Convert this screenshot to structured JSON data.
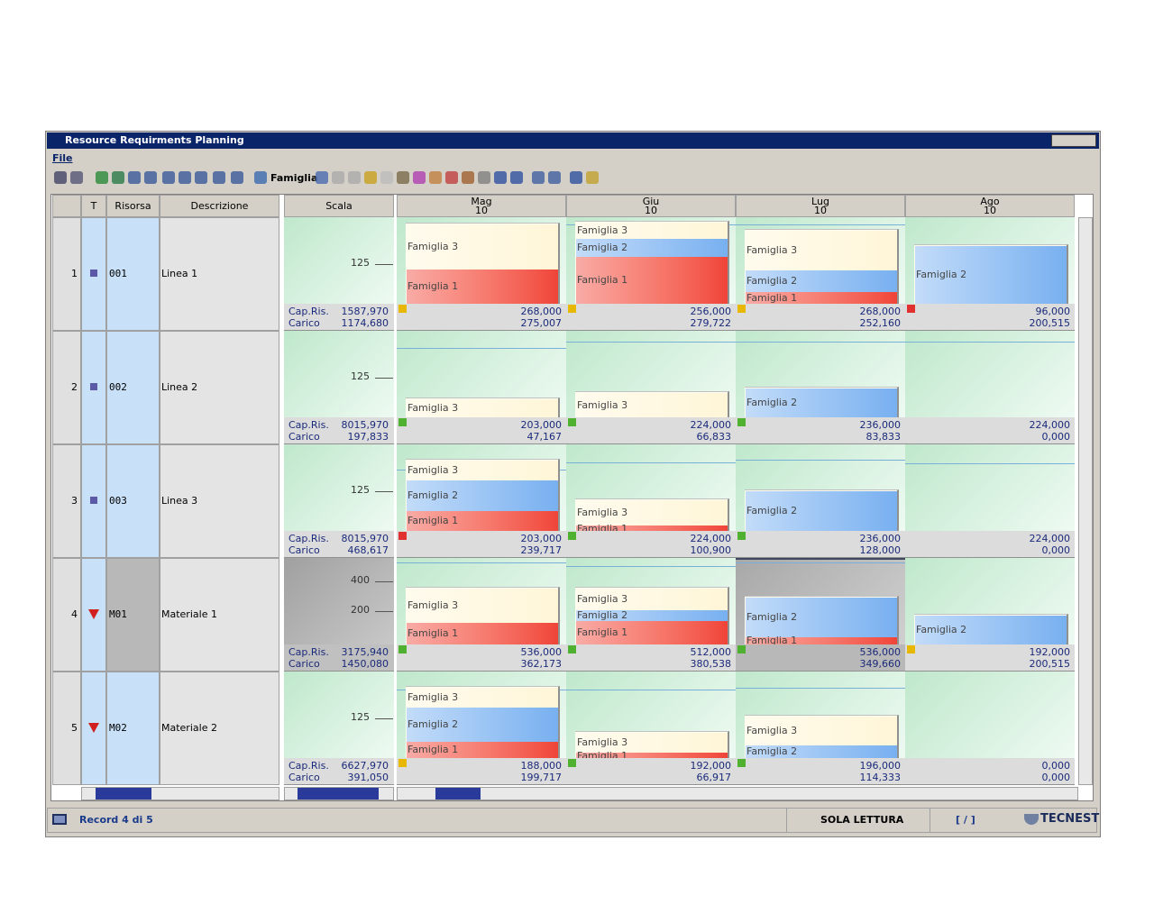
{
  "window": {
    "title": "Resource Requirments Planning",
    "menu": [
      "File"
    ],
    "toolbar_label": "Famiglia"
  },
  "headers": {
    "type": "T",
    "resource": "Risorsa",
    "description": "Descrizione",
    "scale": "Scala"
  },
  "months": [
    {
      "name": "Mag",
      "week": "10"
    },
    {
      "name": "Giu",
      "week": "10"
    },
    {
      "name": "Lug",
      "week": "10"
    },
    {
      "name": "Ago",
      "week": "10"
    }
  ],
  "cap_label": "Cap.Ris.",
  "load_label": "Carico",
  "rows": [
    {
      "number": "1",
      "icon": "square",
      "code": "001",
      "description": "Linea 1",
      "scale_ticks": [
        "125"
      ],
      "capacity": "1587,970",
      "load": "1174,680",
      "cells": [
        {
          "capacity": "268,000",
          "load": "275,007",
          "flag": "#e8b800",
          "segments": [
            {
              "label": "Famiglia 3",
              "color": "#fff6d8"
            },
            {
              "label": "Famiglia 1",
              "color": "#f04438"
            }
          ]
        },
        {
          "capacity": "256,000",
          "load": "279,722",
          "flag": "#e8b800",
          "segments": [
            {
              "label": "Famiglia 3",
              "color": "#fff6d8"
            },
            {
              "label": "Famiglia 2",
              "color": "#78b0f0"
            },
            {
              "label": "Famiglia 1",
              "color": "#f04438"
            }
          ]
        },
        {
          "capacity": "268,000",
          "load": "252,160",
          "flag": "#e8b800",
          "segments": [
            {
              "label": "Famiglia 3",
              "color": "#fff6d8"
            },
            {
              "label": "Famiglia 2",
              "color": "#78b0f0"
            },
            {
              "label": "Famiglia 1",
              "color": "#f04438"
            }
          ]
        },
        {
          "capacity": "96,000",
          "load": "200,515",
          "flag": "#e03030",
          "segments": [
            {
              "label": "Famiglia 2",
              "color": "#78b0f0"
            }
          ]
        }
      ]
    },
    {
      "number": "2",
      "icon": "square",
      "code": "002",
      "description": "Linea 2",
      "scale_ticks": [
        "125"
      ],
      "capacity": "8015,970",
      "load": "197,833",
      "cells": [
        {
          "capacity": "203,000",
          "load": "47,167",
          "flag": "#50b030",
          "segments": [
            {
              "label": "Famiglia 3",
              "color": "#fff6d8"
            }
          ]
        },
        {
          "capacity": "224,000",
          "load": "66,833",
          "flag": "#50b030",
          "segments": [
            {
              "label": "Famiglia 3",
              "color": "#fff6d8"
            }
          ]
        },
        {
          "capacity": "236,000",
          "load": "83,833",
          "flag": "#50b030",
          "segments": [
            {
              "label": "Famiglia 2",
              "color": "#78b0f0"
            }
          ]
        },
        {
          "capacity": "224,000",
          "load": "0,000"
        }
      ]
    },
    {
      "number": "3",
      "icon": "square",
      "code": "003",
      "description": "Linea 3",
      "scale_ticks": [
        "125"
      ],
      "capacity": "8015,970",
      "load": "468,617",
      "cells": [
        {
          "capacity": "203,000",
          "load": "239,717",
          "flag": "#e03030",
          "segments": [
            {
              "label": "Famiglia 3",
              "color": "#fff6d8"
            },
            {
              "label": "Famiglia 2",
              "color": "#78b0f0"
            },
            {
              "label": "Famiglia 1",
              "color": "#f04438"
            }
          ]
        },
        {
          "capacity": "224,000",
          "load": "100,900",
          "flag": "#50b030",
          "segments": [
            {
              "label": "Famiglia 3",
              "color": "#fff6d8"
            },
            {
              "label": "Famiglia 1",
              "color": "#f04438"
            }
          ]
        },
        {
          "capacity": "236,000",
          "load": "128,000",
          "flag": "#50b030",
          "segments": [
            {
              "label": "Famiglia 2",
              "color": "#78b0f0"
            }
          ]
        },
        {
          "capacity": "224,000",
          "load": "0,000"
        }
      ]
    },
    {
      "number": "4",
      "icon": "triangle",
      "code": "M01",
      "description": "Materiale 1",
      "selected": true,
      "scale_ticks": [
        "400",
        "200"
      ],
      "capacity": "3175,940",
      "load": "1450,080",
      "cells": [
        {
          "capacity": "536,000",
          "load": "362,173",
          "flag": "#50b030",
          "segments": [
            {
              "label": "Famiglia 3",
              "color": "#fff6d8"
            },
            {
              "label": "Famiglia 1",
              "color": "#f04438"
            }
          ]
        },
        {
          "capacity": "512,000",
          "load": "380,538",
          "flag": "#50b030",
          "segments": [
            {
              "label": "Famiglia 3",
              "color": "#fff6d8"
            },
            {
              "label": "Famiglia 2",
              "color": "#78b0f0"
            },
            {
              "label": "Famiglia 1",
              "color": "#f04438"
            }
          ]
        },
        {
          "capacity": "536,000",
          "load": "349,660",
          "flag": "#50b030",
          "selected": true,
          "segments": [
            {
              "label": "Famiglia 2",
              "color": "#78b0f0"
            },
            {
              "label": "Famiglia 1",
              "color": "#f04438"
            }
          ]
        },
        {
          "capacity": "192,000",
          "load": "200,515",
          "flag": "#e8b800",
          "segments": [
            {
              "label": "Famiglia 2",
              "color": "#78b0f0"
            }
          ]
        }
      ]
    },
    {
      "number": "5",
      "icon": "triangle",
      "code": "M02",
      "description": "Materiale 2",
      "scale_ticks": [
        "125"
      ],
      "capacity": "6627,970",
      "load": "391,050",
      "cells": [
        {
          "capacity": "188,000",
          "load": "199,717",
          "flag": "#e8b800",
          "segments": [
            {
              "label": "Famiglia 3",
              "color": "#fff6d8"
            },
            {
              "label": "Famiglia 2",
              "color": "#78b0f0"
            },
            {
              "label": "Famiglia 1",
              "color": "#f04438"
            }
          ]
        },
        {
          "capacity": "192,000",
          "load": "66,917",
          "flag": "#50b030",
          "segments": [
            {
              "label": "Famiglia 3",
              "color": "#fff6d8"
            },
            {
              "label": "Famiglia 1",
              "color": "#f04438"
            }
          ]
        },
        {
          "capacity": "196,000",
          "load": "114,333",
          "flag": "#50b030",
          "segments": [
            {
              "label": "Famiglia 3",
              "color": "#fff6d8"
            },
            {
              "label": "Famiglia 2",
              "color": "#78b0f0"
            }
          ]
        },
        {
          "capacity": "0,000",
          "load": "0,000"
        }
      ]
    }
  ],
  "status": {
    "record": "Record 4 di 5",
    "mode": "SOLA LETTURA",
    "range": "[ / ]",
    "brand": "TECNEST"
  }
}
